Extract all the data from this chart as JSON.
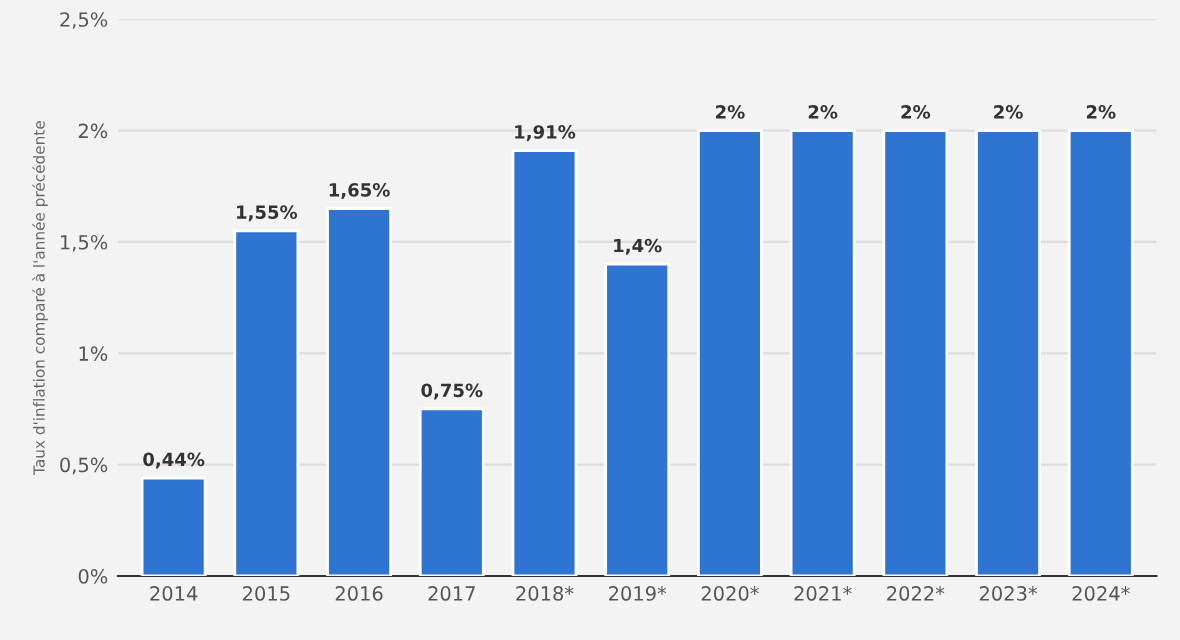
{
  "chart_data": {
    "type": "bar",
    "ylabel": "Taux d'inflation comparé à l'année précédente",
    "categories": [
      "2014",
      "2015",
      "2016",
      "2017",
      "2018*",
      "2019*",
      "2020*",
      "2021*",
      "2022*",
      "2023*",
      "2024*"
    ],
    "values": [
      0.44,
      1.55,
      1.65,
      0.75,
      1.91,
      1.4,
      2,
      2,
      2,
      2,
      2
    ],
    "value_labels": [
      "0,44%",
      "1,55%",
      "1,65%",
      "0,75%",
      "1,91%",
      "1,4%",
      "2%",
      "2%",
      "2%",
      "2%",
      "2%"
    ],
    "color": "#2f74d0",
    "ylim": [
      0,
      2.5
    ],
    "yticks": [
      {
        "value": 0,
        "label": "0%"
      },
      {
        "value": 0.5,
        "label": "0,5%"
      },
      {
        "value": 1,
        "label": "1%"
      },
      {
        "value": 1.5,
        "label": "1,5%"
      },
      {
        "value": 2,
        "label": "2%"
      },
      {
        "value": 2.5,
        "label": "2,5%"
      }
    ],
    "grid": "y"
  }
}
